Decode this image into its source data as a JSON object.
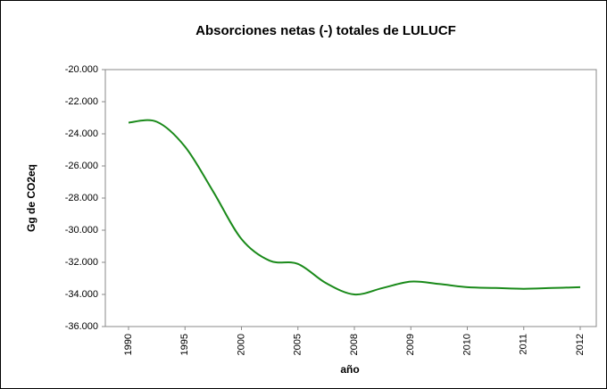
{
  "chart_data": {
    "type": "line",
    "title": "Absorciones netas (-) totales de LULUCF",
    "x_label": "año",
    "y_label": "Gg de CO2eq",
    "categories": [
      "1990",
      null,
      "1995",
      null,
      "2000",
      null,
      "2005",
      null,
      "2008",
      null,
      "2009",
      null,
      "2010",
      null,
      "2011",
      null,
      "2012"
    ],
    "series": [
      {
        "name": "LULUCF",
        "color": "#1a8a1a",
        "values": [
          -23300,
          -23250,
          -24800,
          -27600,
          -30550,
          -31900,
          -32100,
          -33300,
          -34000,
          -33600,
          -33200,
          -33350,
          -33550,
          -33600,
          -33650,
          -33600,
          -33550
        ]
      }
    ],
    "ylim": [
      -36000,
      -20000
    ],
    "yticks": [
      {
        "value": -36000,
        "label": "-36.000"
      },
      {
        "value": -34000,
        "label": "-34.000"
      },
      {
        "value": -32000,
        "label": "-32.000"
      },
      {
        "value": -30000,
        "label": "-30.000"
      },
      {
        "value": -28000,
        "label": "-28.000"
      },
      {
        "value": -26000,
        "label": "-26.000"
      },
      {
        "value": -24000,
        "label": "-24.000"
      },
      {
        "value": -22000,
        "label": "-22.000"
      },
      {
        "value": -20000,
        "label": "-20.000"
      }
    ]
  }
}
